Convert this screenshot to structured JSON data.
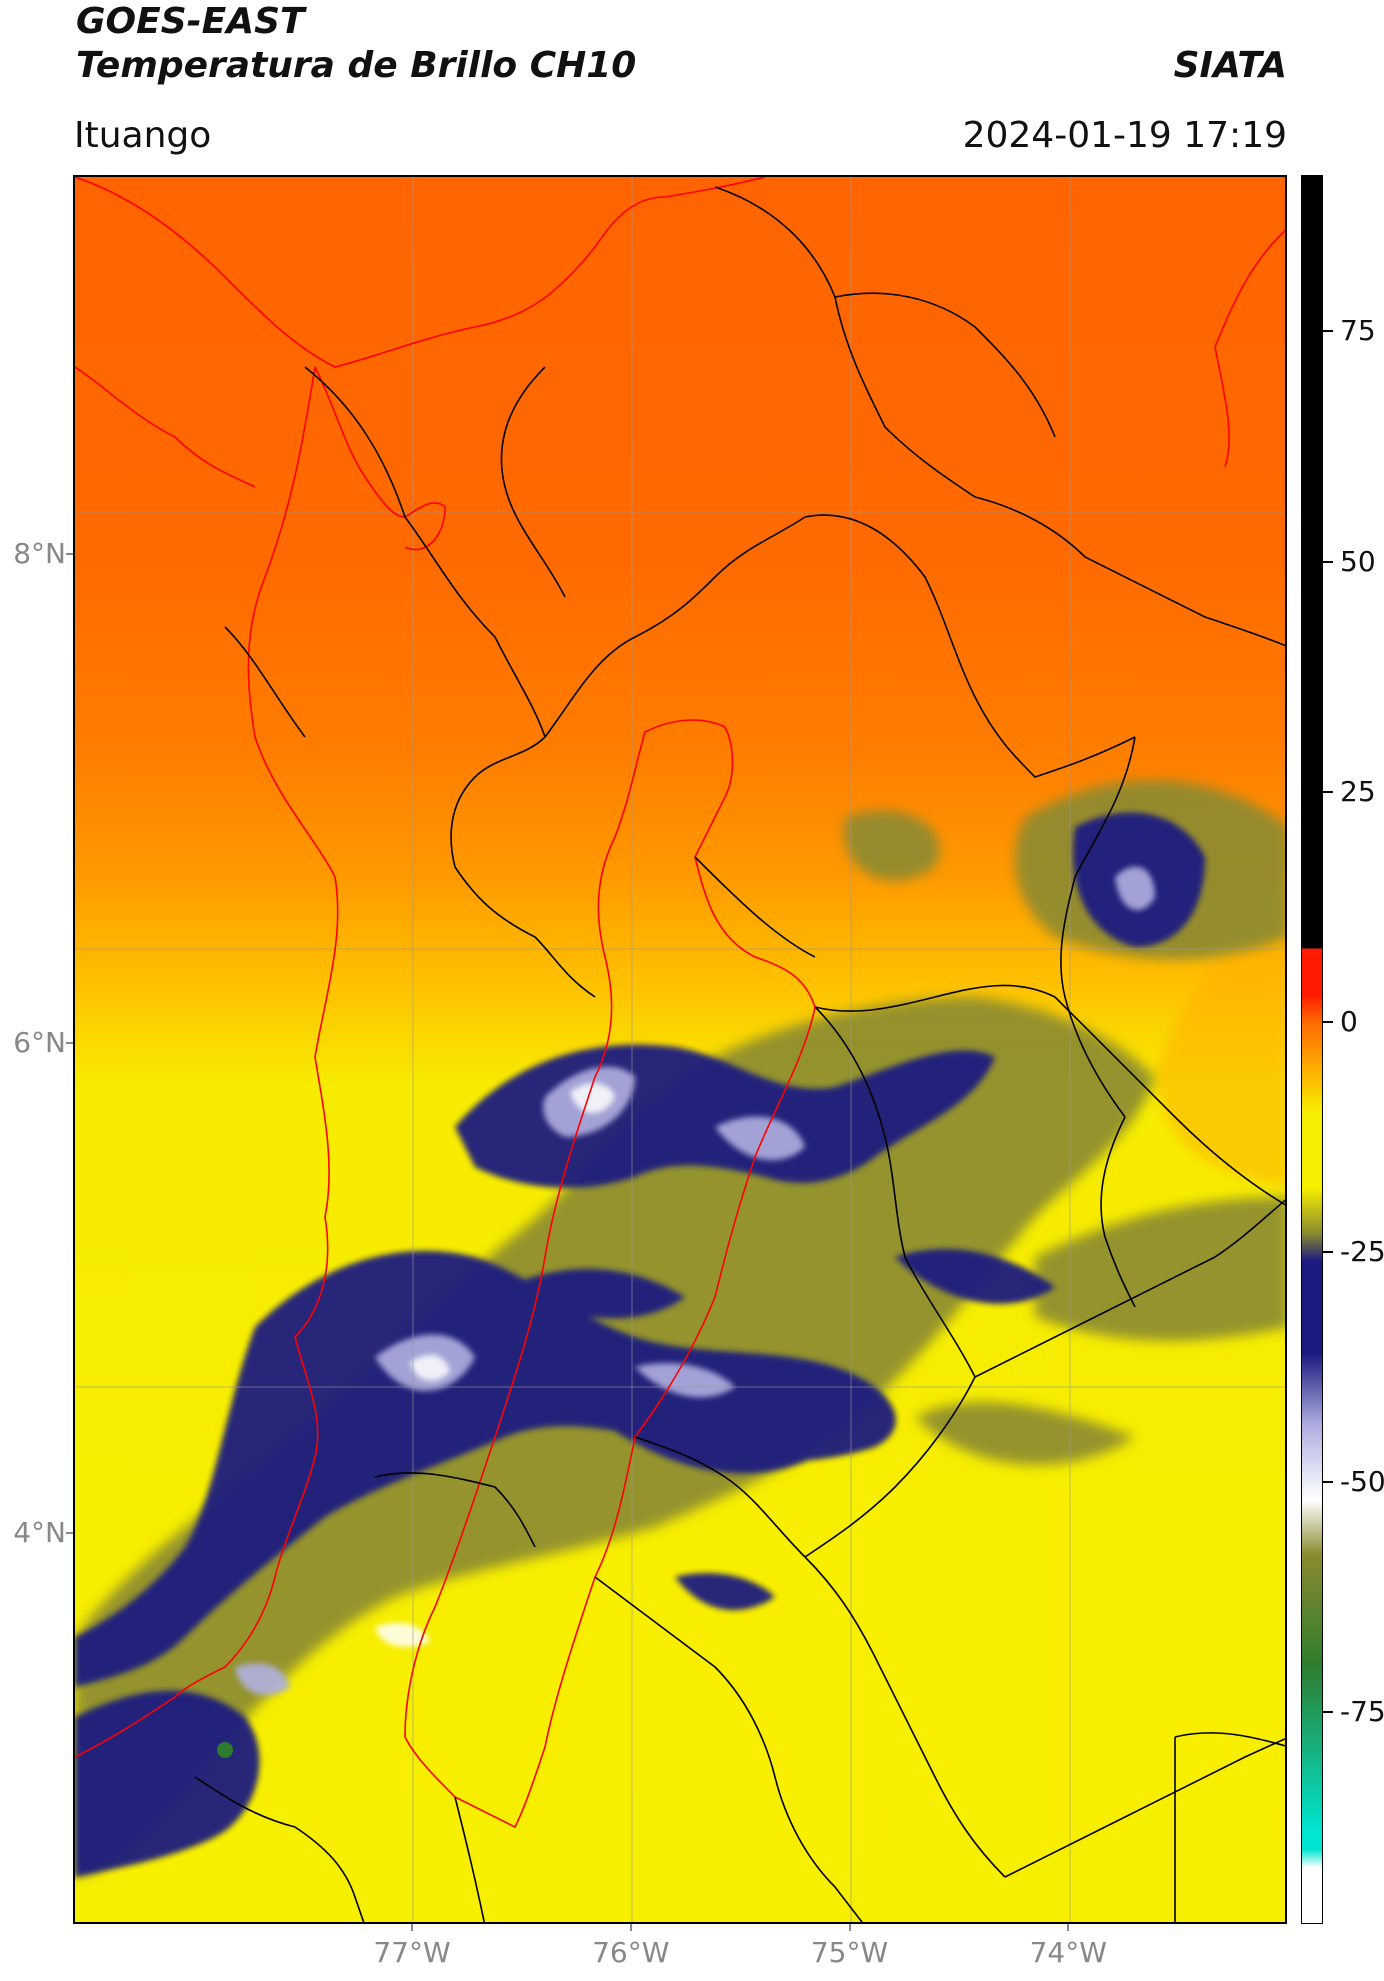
{
  "header": {
    "satellite": "GOES-EAST",
    "product": "Temperatura de Brillo CH10",
    "agency": "SIATA",
    "location": "Ituango",
    "datetime": "2024-01-19 17:19"
  },
  "map": {
    "lat_labels": [
      {
        "value": 8,
        "label": "8°N"
      },
      {
        "value": 6,
        "label": "6°N"
      },
      {
        "value": 4,
        "label": "4°N"
      }
    ],
    "lon_labels": [
      {
        "value": -77,
        "label": "77°W"
      },
      {
        "value": -76,
        "label": "76°W"
      },
      {
        "value": -75,
        "label": "75°W"
      },
      {
        "value": -74,
        "label": "74°W"
      }
    ],
    "lat_range": [
      2.4,
      9.55
    ],
    "lon_range": [
      -78.55,
      -73.0
    ],
    "gridlines": true,
    "boundary_colors": {
      "departments": "#000000",
      "coast_and_region": "#ff0000"
    }
  },
  "colorbar": {
    "range": [
      -98,
      92
    ],
    "ticks": [
      75,
      50,
      25,
      0,
      -25,
      -50,
      -75
    ],
    "colors": {
      "black": "#000000",
      "red": "#ff1a00",
      "orange": "#ff6a00",
      "yellow": "#f7ef00",
      "olive": "#8a8a30",
      "navy": "#1a1a80",
      "lavender": "#b0b0e0",
      "white": "#ffffff",
      "green": "#2e7d2e",
      "cyan": "#00e5d0"
    }
  }
}
